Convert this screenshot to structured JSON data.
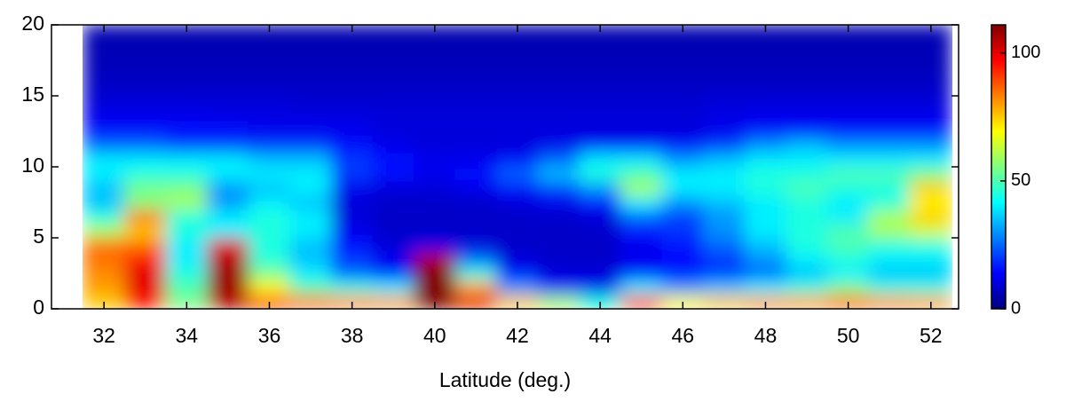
{
  "chart_data": {
    "type": "heatmap",
    "xlabel": "Latitude (deg.)",
    "colormap": "jet",
    "x": [
      32,
      33,
      34,
      35,
      36,
      37,
      38,
      39,
      40,
      41,
      42,
      43,
      44,
      45,
      46,
      47,
      48,
      49,
      50,
      51,
      52
    ],
    "y": [
      0.5,
      1.5,
      2.5,
      3.5,
      4.5,
      5.5,
      6.5,
      7.5,
      8.5,
      9.5,
      10.5,
      11.5,
      12.5,
      13.5,
      14.5,
      15.5,
      16.5,
      17.5,
      18.5,
      19.5
    ],
    "values": [
      [
        75,
        95,
        55,
        105,
        90,
        85,
        82,
        80,
        111,
        100,
        75,
        60,
        45,
        90,
        70,
        75,
        80,
        80,
        85,
        82,
        80
      ],
      [
        80,
        100,
        50,
        108,
        70,
        50,
        45,
        40,
        111,
        80,
        30,
        15,
        12,
        40,
        30,
        35,
        40,
        45,
        55,
        45,
        45
      ],
      [
        82,
        100,
        45,
        108,
        55,
        40,
        25,
        15,
        111,
        45,
        15,
        10,
        10,
        15,
        15,
        20,
        25,
        35,
        40,
        35,
        35
      ],
      [
        85,
        95,
        40,
        105,
        45,
        35,
        20,
        12,
        105,
        25,
        10,
        8,
        8,
        12,
        15,
        20,
        30,
        40,
        45,
        40,
        40
      ],
      [
        85,
        85,
        40,
        100,
        45,
        35,
        15,
        10,
        12,
        10,
        8,
        8,
        8,
        12,
        15,
        25,
        35,
        45,
        50,
        45,
        45
      ],
      [
        60,
        75,
        45,
        40,
        45,
        40,
        12,
        8,
        8,
        8,
        8,
        8,
        8,
        15,
        20,
        30,
        40,
        45,
        50,
        60,
        65
      ],
      [
        45,
        85,
        45,
        40,
        45,
        40,
        10,
        8,
        8,
        8,
        8,
        8,
        10,
        25,
        20,
        30,
        40,
        45,
        40,
        60,
        75
      ],
      [
        35,
        55,
        60,
        30,
        40,
        35,
        10,
        8,
        8,
        8,
        10,
        12,
        15,
        40,
        30,
        35,
        40,
        45,
        40,
        45,
        70
      ],
      [
        35,
        55,
        55,
        30,
        35,
        40,
        12,
        10,
        10,
        12,
        15,
        20,
        30,
        60,
        40,
        40,
        45,
        50,
        45,
        45,
        75
      ],
      [
        40,
        45,
        45,
        40,
        40,
        40,
        20,
        15,
        12,
        15,
        25,
        35,
        45,
        50,
        40,
        40,
        45,
        45,
        50,
        50,
        55
      ],
      [
        40,
        40,
        40,
        40,
        35,
        35,
        20,
        15,
        12,
        12,
        15,
        25,
        40,
        40,
        30,
        35,
        40,
        40,
        40,
        40,
        40
      ],
      [
        25,
        25,
        20,
        20,
        20,
        20,
        15,
        12,
        10,
        10,
        10,
        12,
        15,
        15,
        15,
        20,
        30,
        35,
        30,
        30,
        30
      ],
      [
        15,
        15,
        15,
        15,
        12,
        12,
        12,
        10,
        10,
        10,
        10,
        10,
        10,
        10,
        10,
        12,
        15,
        15,
        15,
        15,
        15
      ],
      [
        12,
        12,
        12,
        11,
        11,
        11,
        11,
        10,
        10,
        10,
        10,
        10,
        10,
        10,
        10,
        11,
        12,
        12,
        12,
        12,
        12
      ],
      [
        10,
        10,
        10,
        10,
        10,
        9,
        9,
        9,
        9,
        9,
        9,
        9,
        9,
        9,
        9,
        10,
        10,
        10,
        10,
        10,
        10
      ],
      [
        8,
        8,
        8,
        8,
        8,
        8,
        8,
        8,
        8,
        8,
        8,
        8,
        8,
        8,
        8,
        8,
        8,
        8,
        8,
        8,
        8
      ],
      [
        7,
        7,
        7,
        7,
        7,
        7,
        7,
        7,
        7,
        7,
        7,
        7,
        7,
        7,
        7,
        7,
        7,
        7,
        7,
        7,
        7
      ],
      [
        6,
        6,
        6,
        6,
        6,
        6,
        6,
        6,
        6,
        6,
        6,
        6,
        6,
        6,
        6,
        6,
        6,
        6,
        6,
        6,
        6
      ],
      [
        6,
        6,
        6,
        6,
        6,
        6,
        6,
        6,
        6,
        6,
        6,
        6,
        6,
        6,
        6,
        6,
        6,
        6,
        6,
        6,
        6
      ],
      [
        5,
        5,
        5,
        5,
        5,
        5,
        5,
        5,
        5,
        5,
        5,
        5,
        5,
        5,
        5,
        5,
        5,
        5,
        5,
        5,
        5
      ]
    ],
    "xlim": [
      30.73,
      52.67
    ],
    "xticks": [
      32,
      34,
      36,
      38,
      40,
      42,
      44,
      46,
      48,
      50,
      52
    ],
    "ylim": [
      0,
      20
    ],
    "yticks": [
      0,
      5,
      10,
      15,
      20
    ],
    "clim": [
      0,
      111
    ],
    "cticks": [
      0,
      50,
      100
    ]
  }
}
